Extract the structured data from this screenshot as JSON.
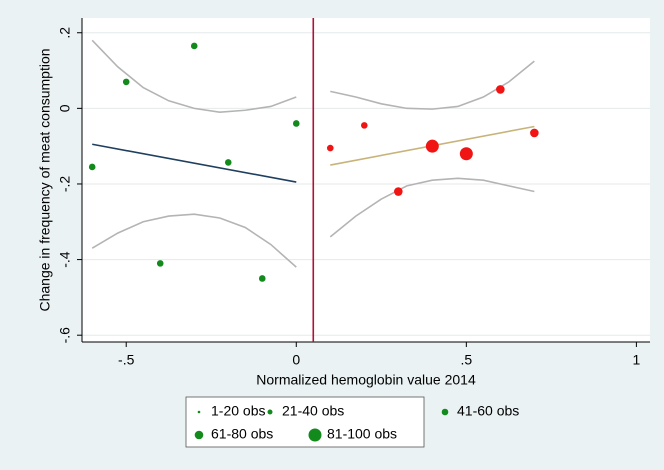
{
  "chart_data": {
    "type": "scatter",
    "xlabel": "Normalized hemoglobin value 2014",
    "ylabel": "Change in frequency of meat consumption",
    "xlim": [
      -0.63,
      1.04
    ],
    "ylim": [
      -0.618,
      0.239
    ],
    "xticks": [
      {
        "value": -0.5,
        "label": "-.5"
      },
      0,
      {
        "value": 0.5,
        "label": ".5"
      },
      1
    ],
    "yticks": [
      {
        "value": 0.2,
        "label": ".2"
      },
      0,
      {
        "value": -0.2,
        "label": "-.2"
      },
      {
        "value": -0.4,
        "label": "-.4"
      },
      {
        "value": -0.6,
        "label": "-.6"
      }
    ],
    "grid": true,
    "cutoff": 0.05,
    "cutoff_color": "#b0103a",
    "points": [
      {
        "color": "#138a1c",
        "x": [
          -0.6,
          -0.5,
          -0.4,
          -0.3,
          -0.2,
          -0.1,
          0
        ],
        "y": [
          -0.155,
          0.07,
          -0.41,
          0.165,
          -0.143,
          -0.45,
          -0.04
        ],
        "groups": [
          "41-60 obs",
          "41-60 obs",
          "41-60 obs",
          "41-60 obs",
          "41-60 obs",
          "41-60 obs",
          "41-60 obs"
        ]
      },
      {
        "color": "#f01414",
        "x": [
          0.1,
          0.2,
          0.3,
          0.4,
          0.5,
          0.6,
          0.7
        ],
        "y": [
          -0.105,
          -0.045,
          -0.22,
          -0.1,
          -0.12,
          0.05,
          -0.065
        ],
        "groups": [
          "41-60 obs",
          "41-60 obs",
          "61-80 obs",
          "81-100 obs",
          "81-100 obs",
          "61-80 obs",
          "61-80 obs"
        ]
      }
    ],
    "fit_lines": [
      {
        "color": "#1f3f5f",
        "x": [
          -0.6,
          0
        ],
        "y": [
          -0.095,
          -0.195
        ]
      },
      {
        "color": "#c8b47a",
        "x": [
          0.1,
          0.7
        ],
        "y": [
          -0.15,
          -0.048
        ]
      }
    ],
    "ci_curves": [
      {
        "color": "#b4b4b4",
        "x": [
          -0.6,
          -0.525,
          -0.45,
          -0.375,
          -0.3,
          -0.225,
          -0.15,
          -0.075,
          0
        ],
        "y": [
          0.18,
          0.11,
          0.055,
          0.02,
          0.0,
          -0.01,
          -0.005,
          0.005,
          0.03
        ]
      },
      {
        "color": "#b4b4b4",
        "x": [
          -0.6,
          -0.525,
          -0.45,
          -0.375,
          -0.3,
          -0.225,
          -0.15,
          -0.075,
          0
        ],
        "y": [
          -0.37,
          -0.33,
          -0.3,
          -0.285,
          -0.28,
          -0.29,
          -0.315,
          -0.36,
          -0.42
        ]
      },
      {
        "color": "#b4b4b4",
        "x": [
          0.1,
          0.175,
          0.25,
          0.325,
          0.4,
          0.475,
          0.55,
          0.625,
          0.7
        ],
        "y": [
          0.045,
          0.03,
          0.012,
          0.0,
          -0.002,
          0.005,
          0.03,
          0.07,
          0.125
        ]
      },
      {
        "color": "#b4b4b4",
        "x": [
          0.1,
          0.175,
          0.25,
          0.325,
          0.4,
          0.475,
          0.55,
          0.625,
          0.7
        ],
        "y": [
          -0.34,
          -0.285,
          -0.24,
          -0.205,
          -0.19,
          -0.185,
          -0.19,
          -0.205,
          -0.22
        ]
      }
    ],
    "legend_color": "#138a1c",
    "legend": [
      {
        "name": "1-20 obs",
        "marker_size": 1.3
      },
      {
        "name": "21-40 obs",
        "marker_size": 2.5
      },
      {
        "name": "41-60 obs",
        "marker_size": 3.3
      },
      {
        "name": "61-80 obs",
        "marker_size": 4.3
      },
      {
        "name": "81-100 obs",
        "marker_size": 6.5
      }
    ]
  }
}
